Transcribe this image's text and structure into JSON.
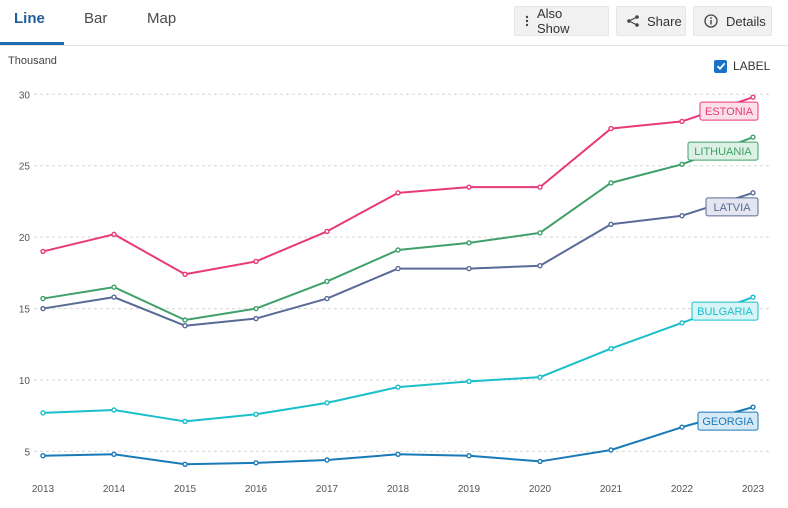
{
  "tabs": [
    {
      "label": "Line"
    },
    {
      "label": "Bar"
    },
    {
      "label": "Map"
    }
  ],
  "toolbar": {
    "also_show_label": "Also Show",
    "share_label": "Share",
    "details_label": "Details",
    "label_toggle": "LABEL"
  },
  "chart_data": {
    "type": "line",
    "unit_label": "Thousand",
    "x": [
      "2013",
      "2014",
      "2015",
      "2016",
      "2017",
      "2018",
      "2019",
      "2020",
      "2021",
      "2022",
      "2023"
    ],
    "ylim": [
      3,
      31
    ],
    "yticks": [
      5,
      10,
      15,
      20,
      25,
      30
    ],
    "grid": true,
    "series": [
      {
        "name": "ESTONIA",
        "color": "#e8397a",
        "label_bg": "#fbe0ea",
        "label_border": "#e8397a",
        "values": [
          19.0,
          20.2,
          17.4,
          18.3,
          20.4,
          23.1,
          23.5,
          23.5,
          27.6,
          28.1,
          29.8
        ]
      },
      {
        "name": "LITHUANIA",
        "color": "#3fa06a",
        "label_bg": "#dcf0e3",
        "label_border": "#3fa06a",
        "values": [
          15.7,
          16.5,
          14.2,
          15.0,
          16.9,
          19.1,
          19.6,
          20.3,
          23.8,
          25.1,
          27.0
        ]
      },
      {
        "name": "LATVIA",
        "color": "#5a6a96",
        "label_bg": "#e3e6f0",
        "label_border": "#5a6a96",
        "values": [
          15.0,
          15.8,
          13.8,
          14.3,
          15.7,
          17.8,
          17.8,
          18.0,
          20.9,
          21.5,
          23.1
        ]
      },
      {
        "name": "BULGARIA",
        "color": "#19bfc9",
        "label_bg": "#d7f4f6",
        "label_border": "#19bfc9",
        "values": [
          7.7,
          7.9,
          7.1,
          7.6,
          8.4,
          9.5,
          9.9,
          10.2,
          12.2,
          14.0,
          15.8
        ]
      },
      {
        "name": "GEORGIA",
        "color": "#1a7ab8",
        "label_bg": "#d6e9f6",
        "label_border": "#1a7ab8",
        "values": [
          4.7,
          4.8,
          4.1,
          4.2,
          4.4,
          4.8,
          4.7,
          4.3,
          5.1,
          6.7,
          8.1
        ]
      }
    ]
  }
}
